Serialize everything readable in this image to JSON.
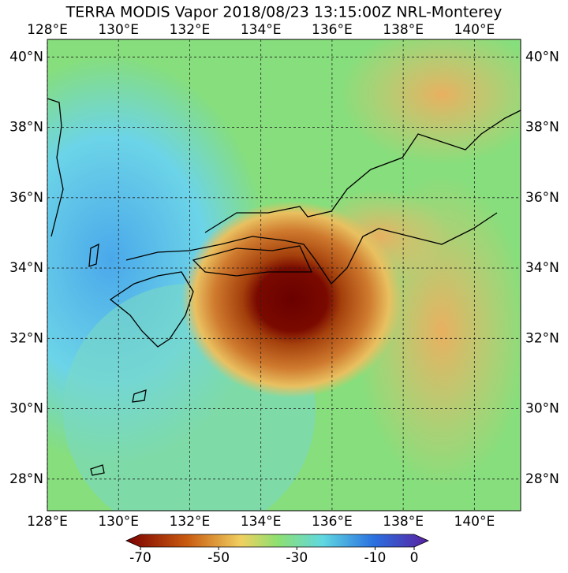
{
  "map": {
    "title": "TERRA MODIS Vapor 2018/08/23 13:15:00Z NRL-Monterey",
    "lonlim": [
      128,
      141.3
    ],
    "latlim": [
      27.1,
      40.5
    ],
    "lon_ticks": [
      {
        "value": 128,
        "label": "128°E"
      },
      {
        "value": 130,
        "label": "130°E"
      },
      {
        "value": 132,
        "label": "132°E"
      },
      {
        "value": 134,
        "label": "134°E"
      },
      {
        "value": 136,
        "label": "136°E"
      },
      {
        "value": 138,
        "label": "138°E"
      },
      {
        "value": 140,
        "label": "140°E"
      }
    ],
    "lat_ticks": [
      {
        "value": 28,
        "label": "28°N"
      },
      {
        "value": 30,
        "label": "30°N"
      },
      {
        "value": 32,
        "label": "32°N"
      },
      {
        "value": 34,
        "label": "34°N"
      },
      {
        "value": 36,
        "label": "36°N"
      },
      {
        "value": 38,
        "label": "38°N"
      },
      {
        "value": 40,
        "label": "40°N"
      }
    ],
    "grid": true,
    "colorbar": {
      "range": [
        -70,
        0
      ],
      "ticks": [
        -70,
        -50,
        -30,
        -10,
        0
      ]
    }
  }
}
